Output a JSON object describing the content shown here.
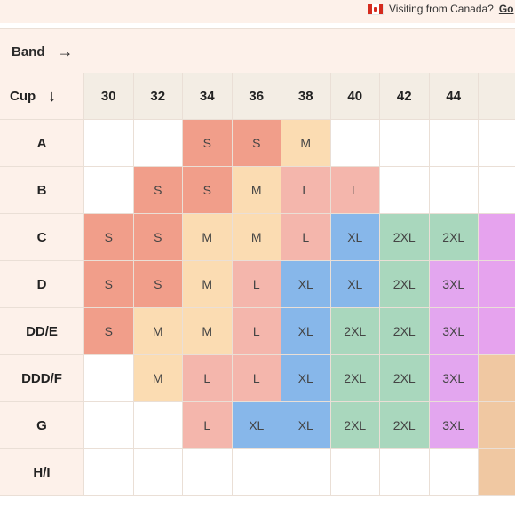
{
  "banner": {
    "text": "Visiting from Canada?",
    "link": "Go"
  },
  "band": {
    "label": "Band",
    "arrow": "→"
  },
  "table": {
    "corner_label": "Cup",
    "corner_arrow": "↓",
    "band_sizes": [
      "30",
      "32",
      "34",
      "36",
      "38",
      "40",
      "42",
      "44",
      ""
    ],
    "rows": [
      {
        "cup": "A",
        "cells": [
          "",
          "",
          "S",
          "S",
          "M",
          "",
          "",
          "",
          ""
        ]
      },
      {
        "cup": "B",
        "cells": [
          "",
          "S",
          "S",
          "M",
          "L",
          "L",
          "",
          "",
          ""
        ]
      },
      {
        "cup": "C",
        "cells": [
          "S",
          "S",
          "M",
          "M",
          "L",
          "XL",
          "2XL",
          "2XL",
          ""
        ]
      },
      {
        "cup": "D",
        "cells": [
          "S",
          "S",
          "M",
          "L",
          "XL",
          "XL",
          "2XL",
          "3XL",
          ""
        ]
      },
      {
        "cup": "DD/E",
        "cells": [
          "S",
          "M",
          "M",
          "L",
          "XL",
          "2XL",
          "2XL",
          "3XL",
          ""
        ]
      },
      {
        "cup": "DDD/F",
        "cells": [
          "",
          "M",
          "L",
          "L",
          "XL",
          "2XL",
          "2XL",
          "3XL",
          ""
        ]
      },
      {
        "cup": "G",
        "cells": [
          "",
          "",
          "L",
          "XL",
          "XL",
          "2XL",
          "2XL",
          "3XL",
          ""
        ]
      },
      {
        "cup": "H/I",
        "cells": [
          "",
          "",
          "",
          "",
          "",
          "",
          "",
          "",
          ""
        ]
      }
    ],
    "partial_column_colors": [
      "#ffffff",
      "#ffffff",
      "#e6a3ee",
      "#e6a3ee",
      "#e6a3ee",
      "#f0c8a2",
      "#f0c8a2",
      "#f0c8a2",
      "#ffffff"
    ]
  },
  "size_colors": {
    "S": "#f19e8a",
    "M": "#fbdcb2",
    "L": "#f4b6ac",
    "XL": "#87b7ea",
    "2XL": "#a9d7bd",
    "3XL": "#e3a6ef"
  }
}
